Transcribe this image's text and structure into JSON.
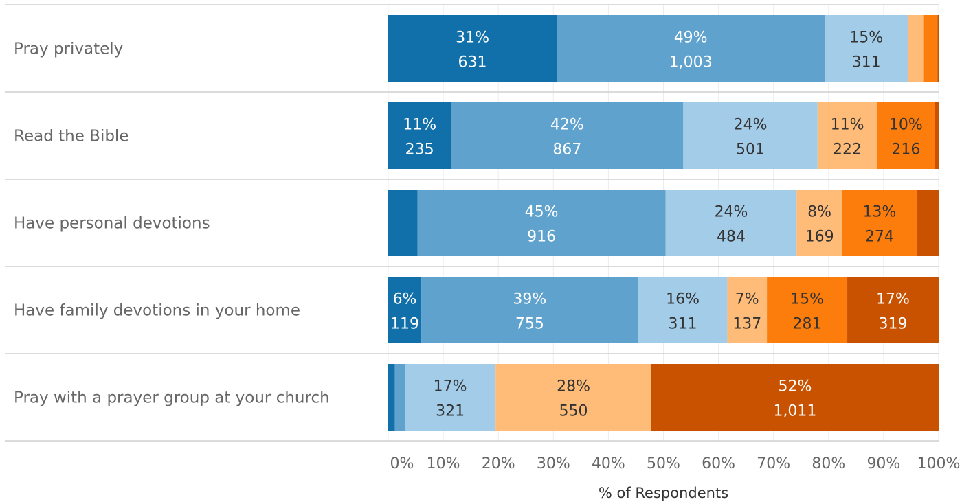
{
  "chart_data": {
    "type": "bar",
    "orientation": "horizontal",
    "stacked": true,
    "normalized": true,
    "title": "",
    "xlabel": "% of Respondents",
    "ylabel": "",
    "xlim": [
      0,
      100
    ],
    "x_ticks": [
      "0%",
      "10%",
      "20%",
      "30%",
      "40%",
      "50%",
      "60%",
      "70%",
      "80%",
      "90%",
      "100%"
    ],
    "grid": true,
    "legend": "none",
    "colors": [
      "#1170aa",
      "#5fa2ce",
      "#a3cce9",
      "#ffbc79",
      "#fc7d0b",
      "#c85200"
    ],
    "label_colors": [
      "#ffffff",
      "#ffffff",
      "#333333",
      "#333333",
      "#333333",
      "#ffffff"
    ],
    "categories": [
      "Pray privately",
      "Read the Bible",
      "Have personal devotions",
      "Have family devotions in your home",
      "Pray with a prayer group at your church"
    ],
    "rows": [
      {
        "category": "Pray privately",
        "segments": [
          {
            "pct": 30.6,
            "pct_label": "31%",
            "count_label": "631"
          },
          {
            "pct": 48.7,
            "pct_label": "49%",
            "count_label": "1,003"
          },
          {
            "pct": 15.1,
            "pct_label": "15%",
            "count_label": "311"
          },
          {
            "pct": 2.8,
            "pct_label": "",
            "count_label": ""
          },
          {
            "pct": 2.6,
            "pct_label": "",
            "count_label": ""
          },
          {
            "pct": 0.2,
            "pct_label": "",
            "count_label": ""
          }
        ]
      },
      {
        "category": "Read the Bible",
        "segments": [
          {
            "pct": 11.4,
            "pct_label": "11%",
            "count_label": "235"
          },
          {
            "pct": 42.2,
            "pct_label": "42%",
            "count_label": "867"
          },
          {
            "pct": 24.4,
            "pct_label": "24%",
            "count_label": "501"
          },
          {
            "pct": 10.8,
            "pct_label": "11%",
            "count_label": "222"
          },
          {
            "pct": 10.5,
            "pct_label": "10%",
            "count_label": "216"
          },
          {
            "pct": 0.7,
            "pct_label": "",
            "count_label": ""
          }
        ]
      },
      {
        "category": "Have personal devotions",
        "segments": [
          {
            "pct": 5.3,
            "pct_label": "",
            "count_label": ""
          },
          {
            "pct": 45.1,
            "pct_label": "45%",
            "count_label": "916"
          },
          {
            "pct": 23.8,
            "pct_label": "24%",
            "count_label": "484"
          },
          {
            "pct": 8.3,
            "pct_label": "8%",
            "count_label": "169"
          },
          {
            "pct": 13.5,
            "pct_label": "13%",
            "count_label": "274"
          },
          {
            "pct": 4.0,
            "pct_label": "",
            "count_label": ""
          }
        ]
      },
      {
        "category": "Have family devotions in your home",
        "segments": [
          {
            "pct": 6.0,
            "pct_label": "6%",
            "count_label": "119"
          },
          {
            "pct": 39.4,
            "pct_label": "39%",
            "count_label": "755"
          },
          {
            "pct": 16.2,
            "pct_label": "16%",
            "count_label": "311"
          },
          {
            "pct": 7.2,
            "pct_label": "7%",
            "count_label": "137"
          },
          {
            "pct": 14.6,
            "pct_label": "15%",
            "count_label": "281"
          },
          {
            "pct": 16.6,
            "pct_label": "17%",
            "count_label": "319"
          }
        ]
      },
      {
        "category": "Pray with a prayer group at your church",
        "segments": [
          {
            "pct": 1.2,
            "pct_label": "",
            "count_label": ""
          },
          {
            "pct": 1.8,
            "pct_label": "",
            "count_label": ""
          },
          {
            "pct": 16.5,
            "pct_label": "17%",
            "count_label": "321"
          },
          {
            "pct": 28.3,
            "pct_label": "28%",
            "count_label": "550"
          },
          {
            "pct": 0,
            "pct_label": "",
            "count_label": ""
          },
          {
            "pct": 52.2,
            "pct_label": "52%",
            "count_label": "1,011"
          }
        ]
      }
    ]
  }
}
